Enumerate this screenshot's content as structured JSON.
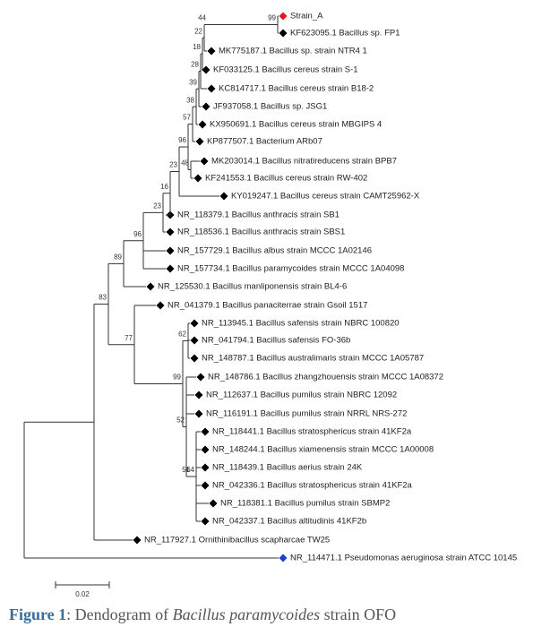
{
  "leaves": [
    {
      "label": "Strain_A",
      "color": "#e0191f"
    },
    {
      "label": "KF623095.1 Bacillus sp. FP1",
      "color": "#000000"
    },
    {
      "label": "MK775187.1 Bacillus sp. strain NTR4 1",
      "color": "#000000"
    },
    {
      "label": "KF033125.1 Bacillus cereus strain S-1",
      "color": "#000000"
    },
    {
      "label": "KC814717.1 Bacillus cereus strain B18-2",
      "color": "#000000"
    },
    {
      "label": "JF937058.1 Bacillus sp. JSG1",
      "color": "#000000"
    },
    {
      "label": "KX950691.1 Bacillus cereus strain MBGIPS 4",
      "color": "#000000"
    },
    {
      "label": "KP877507.1 Bacterium ARb07",
      "color": "#000000"
    },
    {
      "label": "MK203014.1 Bacillus nitratireducens strain BPB7",
      "color": "#000000"
    },
    {
      "label": "KF241553.1 Bacillus cereus strain RW-402",
      "color": "#000000"
    },
    {
      "label": "KY019247.1 Bacillus cereus strain CAMT25962-X",
      "color": "#000000"
    },
    {
      "label": "NR_118379.1 Bacillus anthracis strain SB1",
      "color": "#000000"
    },
    {
      "label": "NR_118536.1 Bacillus anthracis strain SBS1",
      "color": "#000000"
    },
    {
      "label": "NR_157729.1 Bacillus albus strain MCCC 1A02146",
      "color": "#000000"
    },
    {
      "label": "NR_157734.1 Bacillus paramycoides strain MCCC 1A04098",
      "color": "#000000"
    },
    {
      "label": "NR_125530.1 Bacillus manliponensis strain BL4-6",
      "color": "#000000"
    },
    {
      "label": "NR_041379.1 Bacillus panaciterrae strain Gsoil 1517",
      "color": "#000000"
    },
    {
      "label": "NR_113945.1 Bacillus safensis strain NBRC 100820",
      "color": "#000000"
    },
    {
      "label": "NR_041794.1 Bacillus safensis FO-36b",
      "color": "#000000"
    },
    {
      "label": "NR_148787.1 Bacillus australimaris strain MCCC 1A05787",
      "color": "#000000"
    },
    {
      "label": "NR_148786.1 Bacillus zhangzhouensis strain MCCC 1A08372",
      "color": "#000000"
    },
    {
      "label": "NR_112637.1 Bacillus pumilus strain NBRC 12092",
      "color": "#000000"
    },
    {
      "label": "NR_116191.1 Bacillus pumilus strain NRRL NRS-272",
      "color": "#000000"
    },
    {
      "label": "NR_118441.1 Bacillus stratosphericus strain 41KF2a",
      "color": "#000000"
    },
    {
      "label": "NR_148244.1 Bacillus xiamenensis strain MCCC 1A00008",
      "color": "#000000"
    },
    {
      "label": "NR_118439.1 Bacillus aerius strain 24K",
      "color": "#000000"
    },
    {
      "label": "NR_042336.1 Bacillus stratosphericus strain 41KF2a",
      "color": "#000000"
    },
    {
      "label": "NR_118381.1 Bacillus pumilus strain SBMP2",
      "color": "#000000"
    },
    {
      "label": "NR_042337.1 Bacillus altitudinis 41KF2b",
      "color": "#000000"
    },
    {
      "label": "NR_117927.1 Ornithinibacillus scapharcae TW25",
      "color": "#000000"
    },
    {
      "label": "NR_114471.1 Pseudomonas aeruginosa strain ATCC 10145",
      "color": "#1a3fd6"
    }
  ],
  "bootstrap": [
    99,
    44,
    22,
    18,
    28,
    39,
    38,
    57,
    96,
    48,
    23,
    16,
    23,
    96,
    89,
    83,
    77,
    62,
    99,
    52,
    51,
    64
  ],
  "scale_bar": {
    "label": "0.02"
  },
  "caption": {
    "figure": "Figure 1",
    "text": ": Dendogram of ",
    "species": "Bacillus paramycoides",
    "rest": " strain OFO"
  }
}
